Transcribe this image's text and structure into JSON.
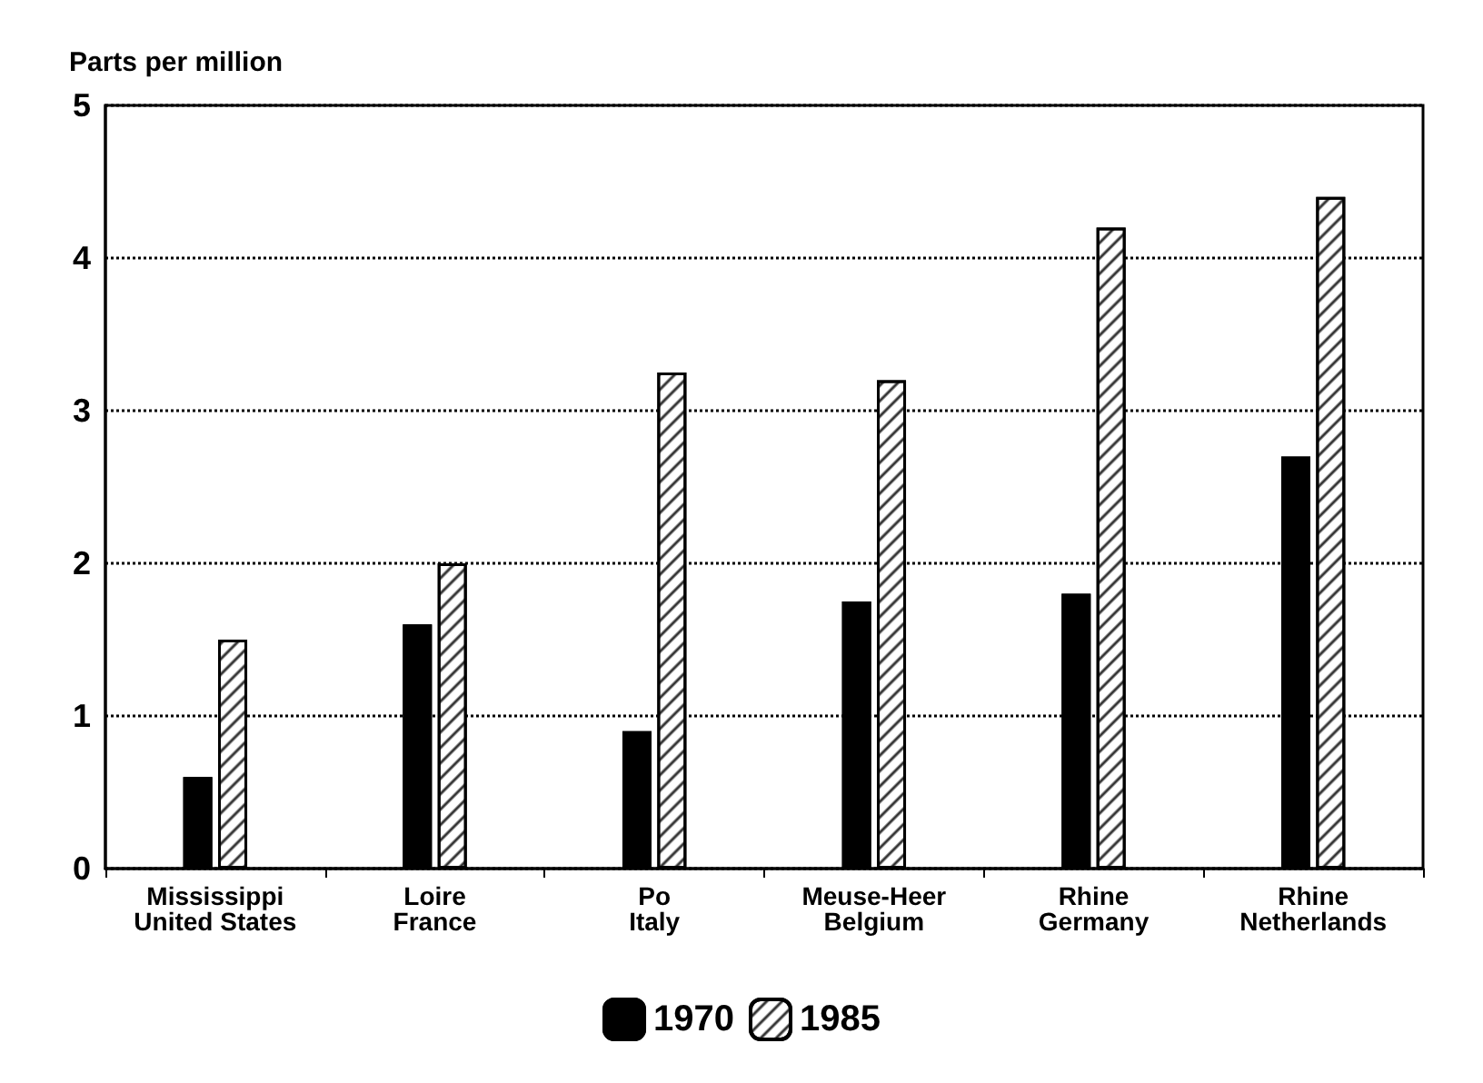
{
  "chart_data": {
    "type": "bar",
    "ylabel": "Parts per million",
    "categories": [
      "Mississippi\nUnited States",
      "Loire\nFrance",
      "Po\nItaly",
      "Meuse-Heer\nBelgium",
      "Rhine\nGermany",
      "Rhine\nNetherlands"
    ],
    "series": [
      {
        "name": "1970",
        "color": "#000000",
        "values": [
          0.6,
          1.6,
          0.9,
          1.75,
          1.8,
          2.7
        ]
      },
      {
        "name": "1985",
        "color": "#ffffff",
        "values": [
          1.5,
          2.0,
          3.25,
          3.2,
          4.2,
          4.4
        ]
      }
    ],
    "ylim": [
      0,
      5
    ],
    "yticks": [
      0,
      1,
      2,
      3,
      4,
      5
    ],
    "grid": "y",
    "legend": "bottom"
  }
}
